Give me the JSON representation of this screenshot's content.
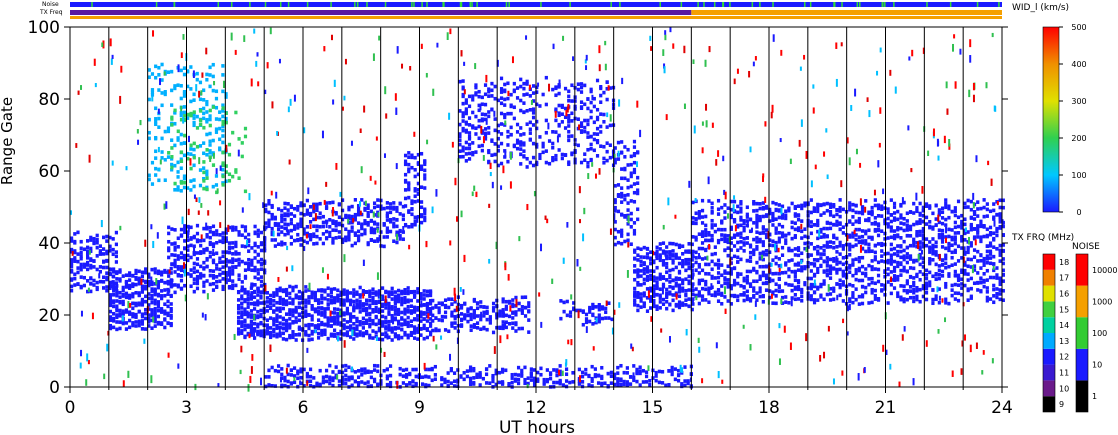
{
  "chart_data": {
    "type": "heatmap",
    "xlabel": "UT hours",
    "ylabel": "Range Gate",
    "xlim": [
      0,
      24
    ],
    "ylim": [
      0,
      100
    ],
    "x_ticks": [
      "0",
      "3",
      "6",
      "9",
      "12",
      "15",
      "18",
      "21",
      "24"
    ],
    "y_ticks": [
      "0",
      "20",
      "40",
      "60",
      "80",
      "100"
    ],
    "top_strip_labels": {
      "noise": "Noise",
      "txfreq": "TX Freq"
    },
    "noise_strip": {
      "color": "#1a1aff",
      "accent": "#33dd33"
    },
    "txfreq_strip": [
      {
        "from": 0,
        "to": 16,
        "color": "#5a1aa0"
      },
      {
        "from": 16,
        "to": 24,
        "color": "#f5a000"
      }
    ],
    "txfreq_underline": {
      "color": "#f5a000"
    },
    "colorbar_width": {
      "title": "WID_l (km/s)",
      "ticks": [
        "0",
        "100",
        "200",
        "300",
        "400",
        "500"
      ]
    },
    "colorbar_txfreq": {
      "title": "TX FRQ (MHz)",
      "ticks": [
        "9",
        "10",
        "11",
        "12",
        "13",
        "14",
        "15",
        "16",
        "17",
        "18"
      ],
      "colors": [
        "#000000",
        "#6a1a8a",
        "#3a1ad0",
        "#1a1aff",
        "#00aaff",
        "#00d0a0",
        "#40d040",
        "#e0e000",
        "#f08000",
        "#ff0000"
      ]
    },
    "colorbar_noise": {
      "title": "NOISE",
      "ticks": [
        "1",
        "10",
        "100",
        "1000",
        "10000"
      ],
      "colors": [
        "#000000",
        "#1a1aff",
        "#33cc33",
        "#f5a000",
        "#ff0000"
      ]
    },
    "scan_boundaries_ut": [
      1,
      2,
      3,
      4,
      5,
      6,
      7,
      8,
      9,
      10,
      11,
      12,
      13,
      14,
      15,
      16,
      17,
      18,
      19,
      20,
      21,
      22,
      23
    ],
    "echo_regions": [
      {
        "name": "band-near-20-early",
        "t0": 1.0,
        "t1": 2.6,
        "g0": 17,
        "g1": 33,
        "color": "#1a1aff",
        "density": 0.85
      },
      {
        "name": "band-near-20-main",
        "t0": 4.3,
        "t1": 9.3,
        "g0": 14,
        "g1": 28,
        "color": "#1a1aff",
        "density": 0.9
      },
      {
        "name": "band-near-20-late",
        "t0": 9.3,
        "t1": 11.8,
        "g0": 16,
        "g1": 25,
        "color": "#1a1aff",
        "density": 0.7
      },
      {
        "name": "band-near-20-mid",
        "t0": 12.6,
        "t1": 14.0,
        "g0": 18,
        "g1": 24,
        "color": "#1a1aff",
        "density": 0.5
      },
      {
        "name": "band-near-35-start",
        "t0": 0.0,
        "t1": 1.2,
        "g0": 27,
        "g1": 43,
        "color": "#1a1aff",
        "density": 0.55
      },
      {
        "name": "band-rising-evening",
        "t0": 2.5,
        "t1": 5.0,
        "g0": 27,
        "g1": 45,
        "color": "#1a1aff",
        "density": 0.6
      },
      {
        "name": "band-40-50",
        "t0": 5.0,
        "t1": 8.6,
        "g0": 40,
        "g1": 52,
        "color": "#1a1aff",
        "density": 0.6
      },
      {
        "name": "band-rising-9",
        "t0": 8.6,
        "t1": 9.1,
        "g0": 45,
        "g1": 66,
        "color": "#1a1aff",
        "density": 0.5
      },
      {
        "name": "near-range-0",
        "t0": 5.0,
        "t1": 16.0,
        "g0": 0,
        "g1": 6,
        "color": "#1a1aff",
        "density": 0.55
      },
      {
        "name": "cluster-70-85",
        "t0": 10.0,
        "t1": 14.0,
        "g0": 62,
        "g1": 86,
        "color": "#1a1aff",
        "density": 0.35
      },
      {
        "name": "band-15-16",
        "t0": 14.5,
        "t1": 16.0,
        "g0": 22,
        "g1": 40,
        "color": "#1a1aff",
        "density": 0.75
      },
      {
        "name": "band-15-rise",
        "t0": 14.0,
        "t1": 14.6,
        "g0": 40,
        "g1": 70,
        "color": "#1a1aff",
        "density": 0.35
      },
      {
        "name": "band-post-16",
        "t0": 16.0,
        "t1": 24.0,
        "g0": 24,
        "g1": 52,
        "color": "#1a1aff",
        "density": 0.55
      },
      {
        "name": "wide-green-early",
        "t0": 2.0,
        "t1": 4.0,
        "g0": 55,
        "g1": 90,
        "color": "#00b0ff",
        "density": 0.22
      },
      {
        "name": "wide-green-plume",
        "t0": 2.5,
        "t1": 4.5,
        "g0": 55,
        "g1": 78,
        "color": "#30d060",
        "density": 0.15
      }
    ],
    "scatter_colors": [
      "#ff0000",
      "#1a1aff",
      "#00c0ff",
      "#30c050",
      "#e00000"
    ]
  }
}
